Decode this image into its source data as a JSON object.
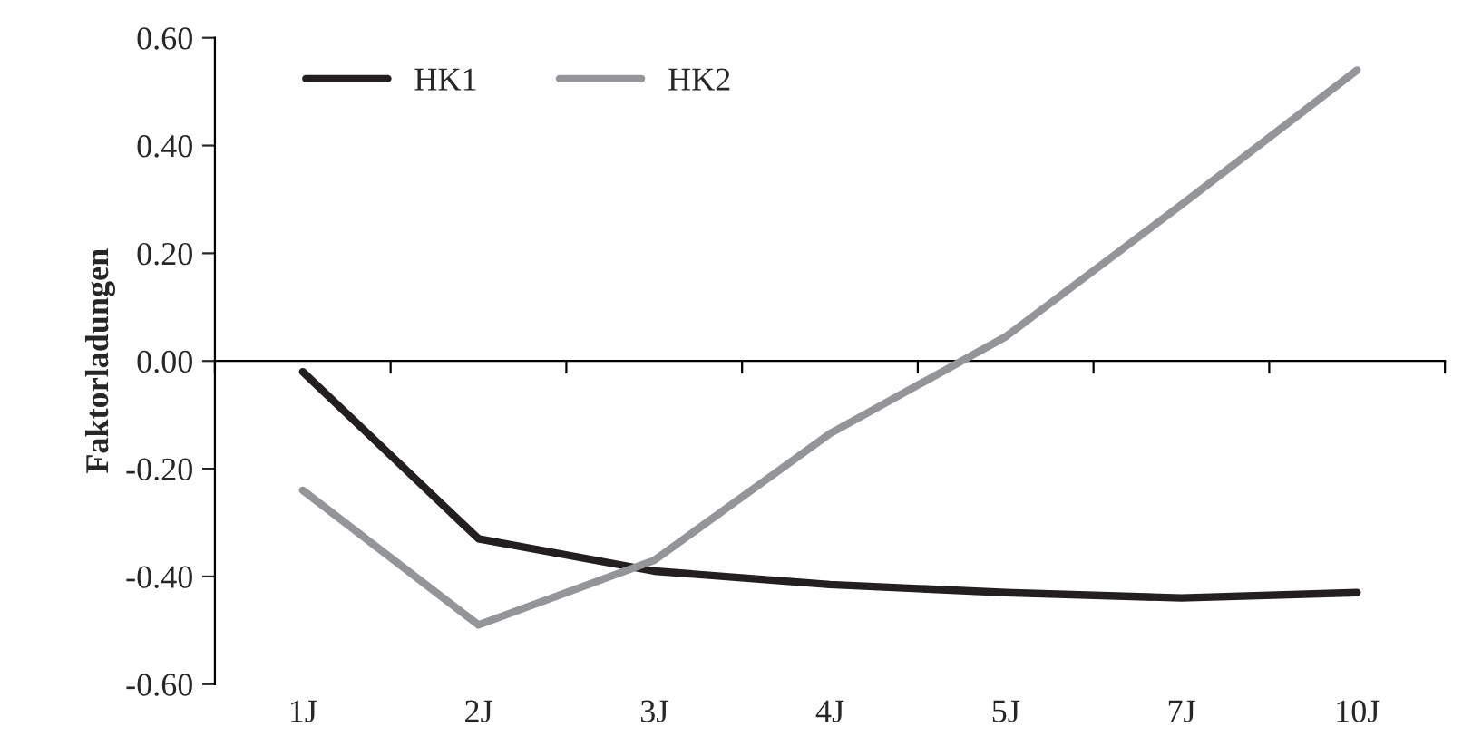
{
  "chart_data": {
    "type": "line",
    "ylabel": "Faktorladungen",
    "categories": [
      "1J",
      "2J",
      "3J",
      "4J",
      "5J",
      "7J",
      "10J"
    ],
    "series": [
      {
        "name": "HK1",
        "color": "#231f20",
        "values": [
          -0.02,
          -0.33,
          -0.39,
          -0.415,
          -0.43,
          -0.44,
          -0.43
        ]
      },
      {
        "name": "HK2",
        "color": "#939598",
        "values": [
          -0.24,
          -0.49,
          -0.37,
          -0.135,
          0.045,
          0.29,
          0.54
        ]
      }
    ],
    "ylim": [
      -0.6,
      0.6
    ],
    "yticks": [
      {
        "value": -0.6,
        "label": "-0.60"
      },
      {
        "value": -0.4,
        "label": "-0.40"
      },
      {
        "value": -0.2,
        "label": "-0.20"
      },
      {
        "value": 0,
        "label": "0.00"
      },
      {
        "value": 0.2,
        "label": "0.20"
      },
      {
        "value": 0.4,
        "label": "0.40"
      },
      {
        "value": 0.6,
        "label": "0.60"
      }
    ],
    "legend": "top left",
    "marker": "none",
    "line_style": "solid"
  }
}
